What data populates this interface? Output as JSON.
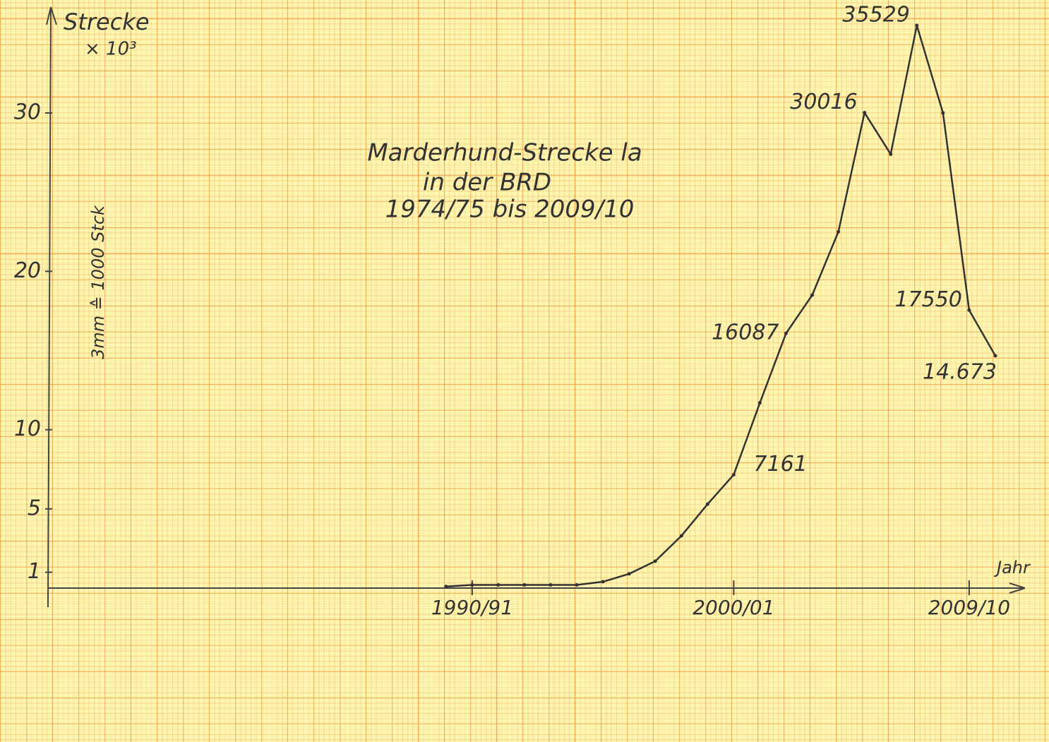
{
  "chart_data": {
    "type": "line",
    "title": [
      "Marderhund-Strecke la",
      "in der BRD",
      "1974/75 bis 2009/10"
    ],
    "y_label": "Strecke",
    "y_unit": "× 10³",
    "scale_note": "3mm ≙ 1000 Stck",
    "x_label": "Jahr",
    "x": [
      1989,
      1990,
      1991,
      1992,
      1993,
      1994,
      1995,
      1996,
      1997,
      1998,
      1999,
      2000,
      2001,
      2002,
      2003,
      2004,
      2005,
      2006,
      2007,
      2008,
      2009,
      2010
    ],
    "values": [
      0.1,
      0.2,
      0.2,
      0.2,
      0.2,
      0.2,
      0.4,
      0.9,
      1.7,
      3.3,
      5.3,
      7.161,
      11.7,
      16.087,
      18.5,
      22.5,
      30.016,
      27.4,
      35.529,
      30,
      17.55,
      14.673
    ],
    "value_labels": [
      null,
      null,
      null,
      null,
      null,
      null,
      null,
      null,
      null,
      null,
      null,
      "7161",
      null,
      "16087",
      null,
      null,
      "30016",
      null,
      "35529",
      null,
      "17550",
      "14.673"
    ],
    "color": "#333333",
    "xlim": [
      1974,
      2011
    ],
    "xticks": [
      {
        "value": 1990,
        "label": "1990/91"
      },
      {
        "value": 2000,
        "label": "2000/01"
      },
      {
        "value": 2009,
        "label": "2009/10"
      }
    ],
    "ylim": [
      0,
      37
    ],
    "yticks": [
      1,
      5,
      10,
      20,
      30
    ],
    "grid": true
  }
}
